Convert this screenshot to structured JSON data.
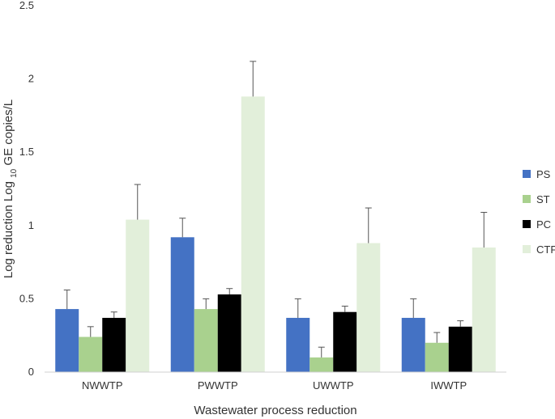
{
  "chart_data": {
    "type": "bar",
    "title": "",
    "xlabel": "Wastewater process reduction",
    "ylabel": {
      "prefix": "Log reduction Log",
      "subscript": "10",
      "suffix": "GE copies/L"
    },
    "categories": [
      "NWWTP",
      "PWWTP",
      "UWWTP",
      "IWWTP"
    ],
    "ylim": [
      0,
      2.5
    ],
    "yticks": [
      "0",
      "0.5",
      "1",
      "1.5",
      "2",
      "2.5"
    ],
    "grid": false,
    "legend_position": "right",
    "series": [
      {
        "name": "PS",
        "color": "#4472C4",
        "values": [
          0.43,
          0.92,
          0.37,
          0.37
        ],
        "errors": [
          0.13,
          0.13,
          0.13,
          0.13
        ]
      },
      {
        "name": "ST",
        "color": "#A9D18E",
        "values": [
          0.24,
          0.43,
          0.1,
          0.2
        ],
        "errors": [
          0.07,
          0.07,
          0.07,
          0.07
        ]
      },
      {
        "name": "PC",
        "color": "#000000",
        "values": [
          0.37,
          0.53,
          0.41,
          0.31
        ],
        "errors": [
          0.04,
          0.04,
          0.04,
          0.04
        ]
      },
      {
        "name": "CTP",
        "color": "#E2EFDA",
        "values": [
          1.04,
          1.88,
          0.88,
          0.85
        ],
        "errors": [
          0.24,
          0.24,
          0.24,
          0.24
        ]
      }
    ]
  }
}
